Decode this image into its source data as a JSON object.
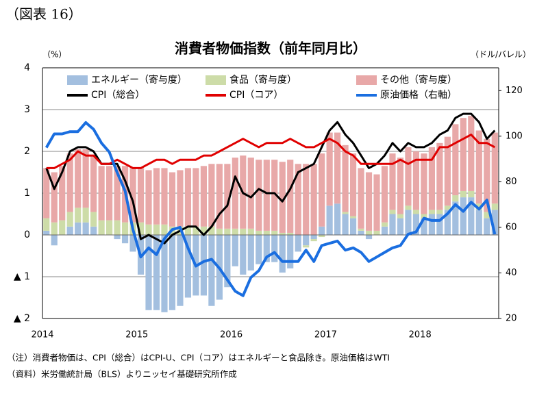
{
  "header": "（図表 16）",
  "chart_data": {
    "type": "bar",
    "title": "消費者物価指数（前年同月比）",
    "y_unit": "（%）",
    "y2_unit": "（ドル/バレル）",
    "categories": [
      "2014",
      null,
      null,
      null,
      null,
      null,
      null,
      null,
      null,
      null,
      null,
      null,
      "2015",
      null,
      null,
      null,
      null,
      null,
      null,
      null,
      null,
      null,
      null,
      null,
      "2016",
      null,
      null,
      null,
      null,
      null,
      null,
      null,
      null,
      null,
      null,
      null,
      "2017",
      null,
      null,
      null,
      null,
      null,
      null,
      null,
      null,
      null,
      null,
      null,
      "2018",
      null,
      null,
      null,
      null,
      null,
      null,
      null,
      null,
      null
    ],
    "ylim": [
      -2,
      4
    ],
    "yticks": [
      {
        "value": -2,
        "label": "▲ 2"
      },
      {
        "value": -1,
        "label": "▲ 1"
      },
      0,
      1,
      2,
      3,
      4
    ],
    "y2lim": [
      20,
      130
    ],
    "y2ticks": [
      20,
      40,
      60,
      80,
      100,
      120
    ],
    "grid": true,
    "series": [
      {
        "name": "エネルギー（寄与度）",
        "type": "bar",
        "color": "#a3bfdf",
        "values": [
          0.1,
          -0.25,
          0,
          0.2,
          0.3,
          0.3,
          0.2,
          0,
          0,
          -0.1,
          -0.2,
          -0.4,
          -0.95,
          -1.8,
          -1.8,
          -1.85,
          -1.8,
          -1.7,
          -1.5,
          -1.45,
          -1.45,
          -1.7,
          -1.55,
          -1.25,
          -0.75,
          -0.95,
          -0.85,
          -0.7,
          -0.65,
          -0.65,
          -0.9,
          -0.8,
          -0.4,
          -0.25,
          -0.1,
          0.2,
          0.7,
          0.75,
          0.5,
          0.4,
          0.1,
          -0.1,
          0,
          0.2,
          0.5,
          0.4,
          0.6,
          0.5,
          0.4,
          0.5,
          0.5,
          0.6,
          0.8,
          0.9,
          0.9,
          0.6,
          0.4,
          0.6
        ]
      },
      {
        "name": "食品（寄与度）",
        "type": "bar",
        "color": "#cddca8",
        "values": [
          0.3,
          0.3,
          0.35,
          0.35,
          0.35,
          0.35,
          0.35,
          0.35,
          0.35,
          0.35,
          0.3,
          0.3,
          0.3,
          0.25,
          0.25,
          0.25,
          0.2,
          0.2,
          0.2,
          0.2,
          0.2,
          0.2,
          0.15,
          0.15,
          0.15,
          0.15,
          0.15,
          0.1,
          0.1,
          0.1,
          0.05,
          0.05,
          0,
          -0.05,
          -0.05,
          -0.05,
          0,
          0,
          0.05,
          0.05,
          0.05,
          0.1,
          0.1,
          0.1,
          0.1,
          0.1,
          0.1,
          0.1,
          0.1,
          0.1,
          0.1,
          0.1,
          0.15,
          0.15,
          0.15,
          0.15,
          0.15,
          0.15
        ]
      },
      {
        "name": "その他（寄与度）",
        "type": "bar",
        "color": "#e8a8a8",
        "values": [
          1.2,
          1.2,
          1.3,
          1.4,
          1.4,
          1.4,
          1.35,
          1.3,
          1.3,
          1.3,
          1.35,
          1.3,
          1.3,
          1.3,
          1.35,
          1.35,
          1.3,
          1.35,
          1.4,
          1.4,
          1.45,
          1.5,
          1.55,
          1.55,
          1.7,
          1.75,
          1.7,
          1.7,
          1.7,
          1.7,
          1.7,
          1.75,
          1.7,
          1.7,
          1.7,
          1.75,
          1.75,
          1.7,
          1.6,
          1.5,
          1.45,
          1.4,
          1.35,
          1.35,
          1.35,
          1.35,
          1.4,
          1.4,
          1.45,
          1.5,
          1.6,
          1.65,
          1.7,
          1.75,
          1.8,
          1.75,
          1.75,
          1.7
        ]
      },
      {
        "name": "CPI（総合）",
        "type": "line",
        "color": "#000000",
        "values": [
          1.6,
          1.1,
          1.5,
          2.0,
          2.1,
          2.1,
          2.0,
          1.7,
          1.7,
          1.7,
          1.3,
          0.8,
          -0.1,
          0.0,
          -0.1,
          -0.2,
          0.0,
          0.1,
          0.2,
          0.2,
          0.0,
          0.2,
          0.5,
          0.7,
          1.4,
          1.0,
          0.9,
          1.1,
          1.0,
          1.0,
          0.8,
          1.1,
          1.5,
          1.6,
          1.7,
          2.1,
          2.5,
          2.7,
          2.4,
          2.2,
          1.9,
          1.6,
          1.7,
          1.9,
          2.2,
          2.0,
          2.2,
          2.1,
          2.1,
          2.2,
          2.4,
          2.5,
          2.8,
          2.9,
          2.9,
          2.7,
          2.3,
          2.5
        ]
      },
      {
        "name": "CPI（コア）",
        "type": "line",
        "color": "#e00000",
        "values": [
          1.6,
          1.6,
          1.7,
          1.8,
          2.0,
          1.9,
          1.9,
          1.7,
          1.7,
          1.8,
          1.7,
          1.6,
          1.6,
          1.7,
          1.8,
          1.8,
          1.7,
          1.8,
          1.8,
          1.8,
          1.9,
          1.9,
          2.0,
          2.1,
          2.2,
          2.3,
          2.2,
          2.1,
          2.2,
          2.2,
          2.2,
          2.3,
          2.2,
          2.1,
          2.1,
          2.2,
          2.3,
          2.2,
          2.0,
          1.9,
          1.7,
          1.7,
          1.7,
          1.7,
          1.7,
          1.8,
          1.7,
          1.8,
          1.8,
          1.8,
          2.1,
          2.1,
          2.2,
          2.3,
          2.4,
          2.2,
          2.2,
          2.1
        ]
      },
      {
        "name": "原油価格（右軸）",
        "type": "line",
        "axis": "y2",
        "color": "#1a6ee0",
        "values": [
          95,
          101,
          101,
          102,
          102,
          106,
          103,
          97,
          93,
          84,
          76,
          59,
          47,
          51,
          48,
          55,
          59,
          60,
          51,
          43,
          45,
          46,
          42,
          37,
          32,
          30,
          38,
          41,
          47,
          49,
          45,
          45,
          45,
          50,
          45,
          52,
          53,
          54,
          50,
          51,
          49,
          45,
          47,
          49,
          51,
          52,
          57,
          58,
          64,
          63,
          63,
          66,
          70,
          67,
          71,
          68,
          72,
          57
        ]
      }
    ]
  },
  "notes": [
    "（注）消費者物価は、CPI（総合）はCPI-U、CPI（コア）はエネルギーと食品除き。原油価格はWTI",
    "（資料）米労働統計局（BLS）よりニッセイ基礎研究所作成"
  ]
}
